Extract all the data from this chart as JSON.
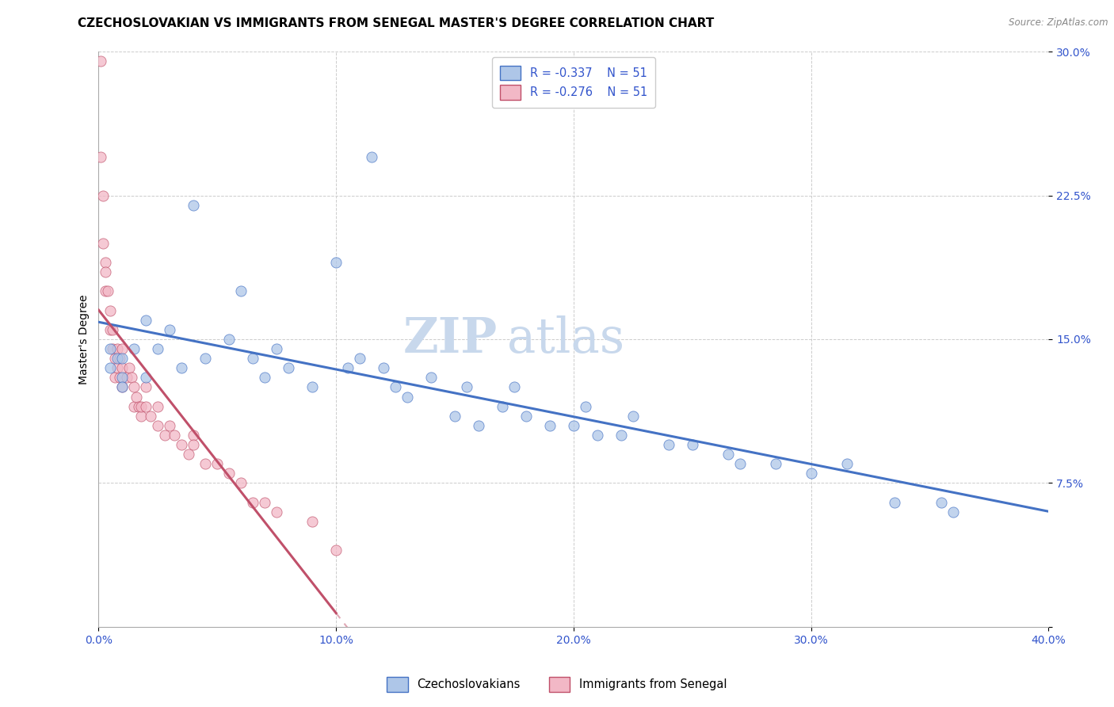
{
  "title": "CZECHOSLOVAKIAN VS IMMIGRANTS FROM SENEGAL MASTER'S DEGREE CORRELATION CHART",
  "source_text": "Source: ZipAtlas.com",
  "ylabel": "Master's Degree",
  "legend_label1": "Czechoslovakians",
  "legend_label2": "Immigrants from Senegal",
  "legend_r1": "R = -0.337",
  "legend_n1": "N = 51",
  "legend_r2": "R = -0.276",
  "legend_n2": "N = 51",
  "xlim": [
    0.0,
    0.4
  ],
  "ylim": [
    0.0,
    0.3
  ],
  "xticks": [
    0.0,
    0.1,
    0.2,
    0.3,
    0.4
  ],
  "yticks": [
    0.0,
    0.075,
    0.15,
    0.225,
    0.3
  ],
  "xtick_labels": [
    "0.0%",
    "10.0%",
    "20.0%",
    "30.0%",
    "40.0%"
  ],
  "ytick_labels": [
    "",
    "7.5%",
    "15.0%",
    "22.5%",
    "30.0%"
  ],
  "color_blue": "#aec6e8",
  "color_pink": "#f2b8c6",
  "line_blue": "#4472c4",
  "line_pink": "#c0506a",
  "watermark_zip": "ZIP",
  "watermark_atlas": "atlas",
  "blue_x": [
    0.005,
    0.005,
    0.008,
    0.01,
    0.01,
    0.01,
    0.015,
    0.02,
    0.02,
    0.025,
    0.03,
    0.035,
    0.04,
    0.045,
    0.055,
    0.06,
    0.065,
    0.07,
    0.075,
    0.08,
    0.09,
    0.1,
    0.105,
    0.11,
    0.115,
    0.12,
    0.125,
    0.13,
    0.14,
    0.15,
    0.155,
    0.16,
    0.17,
    0.175,
    0.18,
    0.19,
    0.2,
    0.205,
    0.21,
    0.22,
    0.225,
    0.24,
    0.25,
    0.265,
    0.27,
    0.285,
    0.3,
    0.315,
    0.335,
    0.355,
    0.36
  ],
  "blue_y": [
    0.135,
    0.145,
    0.14,
    0.13,
    0.14,
    0.125,
    0.145,
    0.16,
    0.13,
    0.145,
    0.155,
    0.135,
    0.22,
    0.14,
    0.15,
    0.175,
    0.14,
    0.13,
    0.145,
    0.135,
    0.125,
    0.19,
    0.135,
    0.14,
    0.245,
    0.135,
    0.125,
    0.12,
    0.13,
    0.11,
    0.125,
    0.105,
    0.115,
    0.125,
    0.11,
    0.105,
    0.105,
    0.115,
    0.1,
    0.1,
    0.11,
    0.095,
    0.095,
    0.09,
    0.085,
    0.085,
    0.08,
    0.085,
    0.065,
    0.065,
    0.06
  ],
  "pink_x": [
    0.001,
    0.001,
    0.002,
    0.002,
    0.003,
    0.003,
    0.003,
    0.004,
    0.005,
    0.005,
    0.006,
    0.006,
    0.007,
    0.007,
    0.008,
    0.008,
    0.009,
    0.009,
    0.01,
    0.01,
    0.01,
    0.012,
    0.013,
    0.014,
    0.015,
    0.015,
    0.016,
    0.017,
    0.018,
    0.018,
    0.02,
    0.02,
    0.022,
    0.025,
    0.025,
    0.028,
    0.03,
    0.032,
    0.035,
    0.038,
    0.04,
    0.04,
    0.045,
    0.05,
    0.055,
    0.06,
    0.065,
    0.07,
    0.075,
    0.09,
    0.1
  ],
  "pink_y": [
    0.295,
    0.245,
    0.225,
    0.2,
    0.19,
    0.185,
    0.175,
    0.175,
    0.165,
    0.155,
    0.155,
    0.145,
    0.14,
    0.13,
    0.145,
    0.135,
    0.14,
    0.13,
    0.135,
    0.125,
    0.145,
    0.13,
    0.135,
    0.13,
    0.125,
    0.115,
    0.12,
    0.115,
    0.11,
    0.115,
    0.115,
    0.125,
    0.11,
    0.115,
    0.105,
    0.1,
    0.105,
    0.1,
    0.095,
    0.09,
    0.1,
    0.095,
    0.085,
    0.085,
    0.08,
    0.075,
    0.065,
    0.065,
    0.06,
    0.055,
    0.04
  ],
  "title_fontsize": 11,
  "tick_fontsize": 10,
  "tick_color": "#3355cc",
  "axis_label_fontsize": 10,
  "watermark_fontsize_zip": 44,
  "watermark_fontsize_atlas": 44
}
